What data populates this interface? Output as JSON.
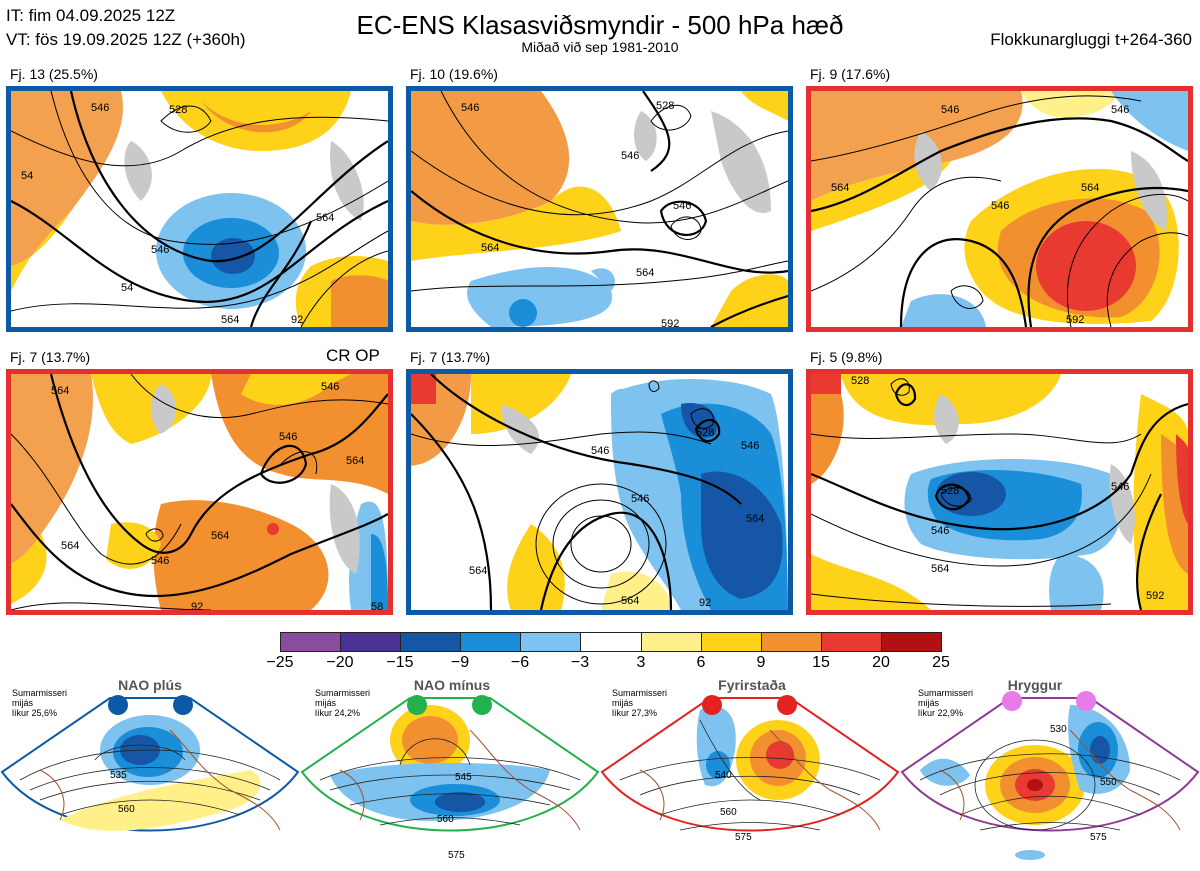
{
  "header": {
    "it_line": "IT: fim 04.09.2025 12Z",
    "vt_line": "VT: fös 19.09.2025 12Z  (+360h)",
    "title": "EC-ENS Klasasviðsmyndir - 500 hPa hæð",
    "subtitle": "Miðað við sep 1981-2010",
    "window": "Flokkunargluggi t+264-360"
  },
  "panels": [
    {
      "label": "Fj. 13 (25.5%)",
      "border": "blue",
      "contours": [
        "546",
        "528",
        "564",
        "546",
        "564",
        "54",
        "92",
        "54"
      ]
    },
    {
      "label": "Fj. 10 (19.6%)",
      "border": "blue",
      "contours": [
        "546",
        "546",
        "546",
        "564",
        "564",
        "528",
        "592"
      ]
    },
    {
      "label": "Fj. 9 (17.6%)",
      "border": "red",
      "contours": [
        "546",
        "564",
        "546",
        "564",
        "546",
        "592"
      ]
    },
    {
      "label": "Fj. 7 (13.7%)",
      "border": "red",
      "contours": [
        "564",
        "546",
        "546",
        "564",
        "546",
        "564",
        "564",
        "92",
        "58"
      ]
    },
    {
      "label": "Fj. 7 (13.7%)",
      "border": "blue",
      "contours": [
        "546",
        "528",
        "546",
        "546",
        "564",
        "564",
        "564",
        "92"
      ]
    },
    {
      "label": "Fj. 5 (9.8%)",
      "border": "red",
      "contours": [
        "528",
        "528",
        "546",
        "546",
        "564",
        "592"
      ]
    }
  ],
  "extra_label": "CR OP",
  "colorbar": {
    "ticks": [
      "−25",
      "−20",
      "−15",
      "−9",
      "−6",
      "−3",
      "3",
      "6",
      "9",
      "15",
      "20",
      "25"
    ],
    "colors": [
      "#8a4d9e",
      "#4a3196",
      "#1557a6",
      "#1a8ed8",
      "#7ec2ef",
      "#ffffff",
      "#fff08a",
      "#ffd21a",
      "#f29030",
      "#e83a30",
      "#b31016"
    ]
  },
  "regimes": [
    {
      "name": "NAO plús",
      "note": [
        "Sumarmisseri",
        "mijás",
        "líkur 25,6%"
      ],
      "dot_color": "#0c5aa6",
      "frame_color": "#0c5aa6",
      "contours": [
        "535",
        "560"
      ]
    },
    {
      "name": "NAO mínus",
      "note": [
        "Sumarmisseri",
        "mijás",
        "líkur 24,2%"
      ],
      "dot_color": "#22b14c",
      "frame_color": "#22b14c",
      "contours": [
        "545",
        "560",
        "575"
      ]
    },
    {
      "name": "Fyrirstaða",
      "note": [
        "Sumarmisseri",
        "mijás",
        "líkur 27,3%"
      ],
      "dot_color": "#e52222",
      "frame_color": "#e52222",
      "contours": [
        "540",
        "560",
        "575"
      ]
    },
    {
      "name": "Hryggur",
      "note": [
        "Sumarmisseri",
        "mijás",
        "líkur 22,9%"
      ],
      "dot_color": "#e97ae9",
      "frame_color": "#8e3a96",
      "contours": [
        "530",
        "550",
        "575"
      ]
    }
  ]
}
